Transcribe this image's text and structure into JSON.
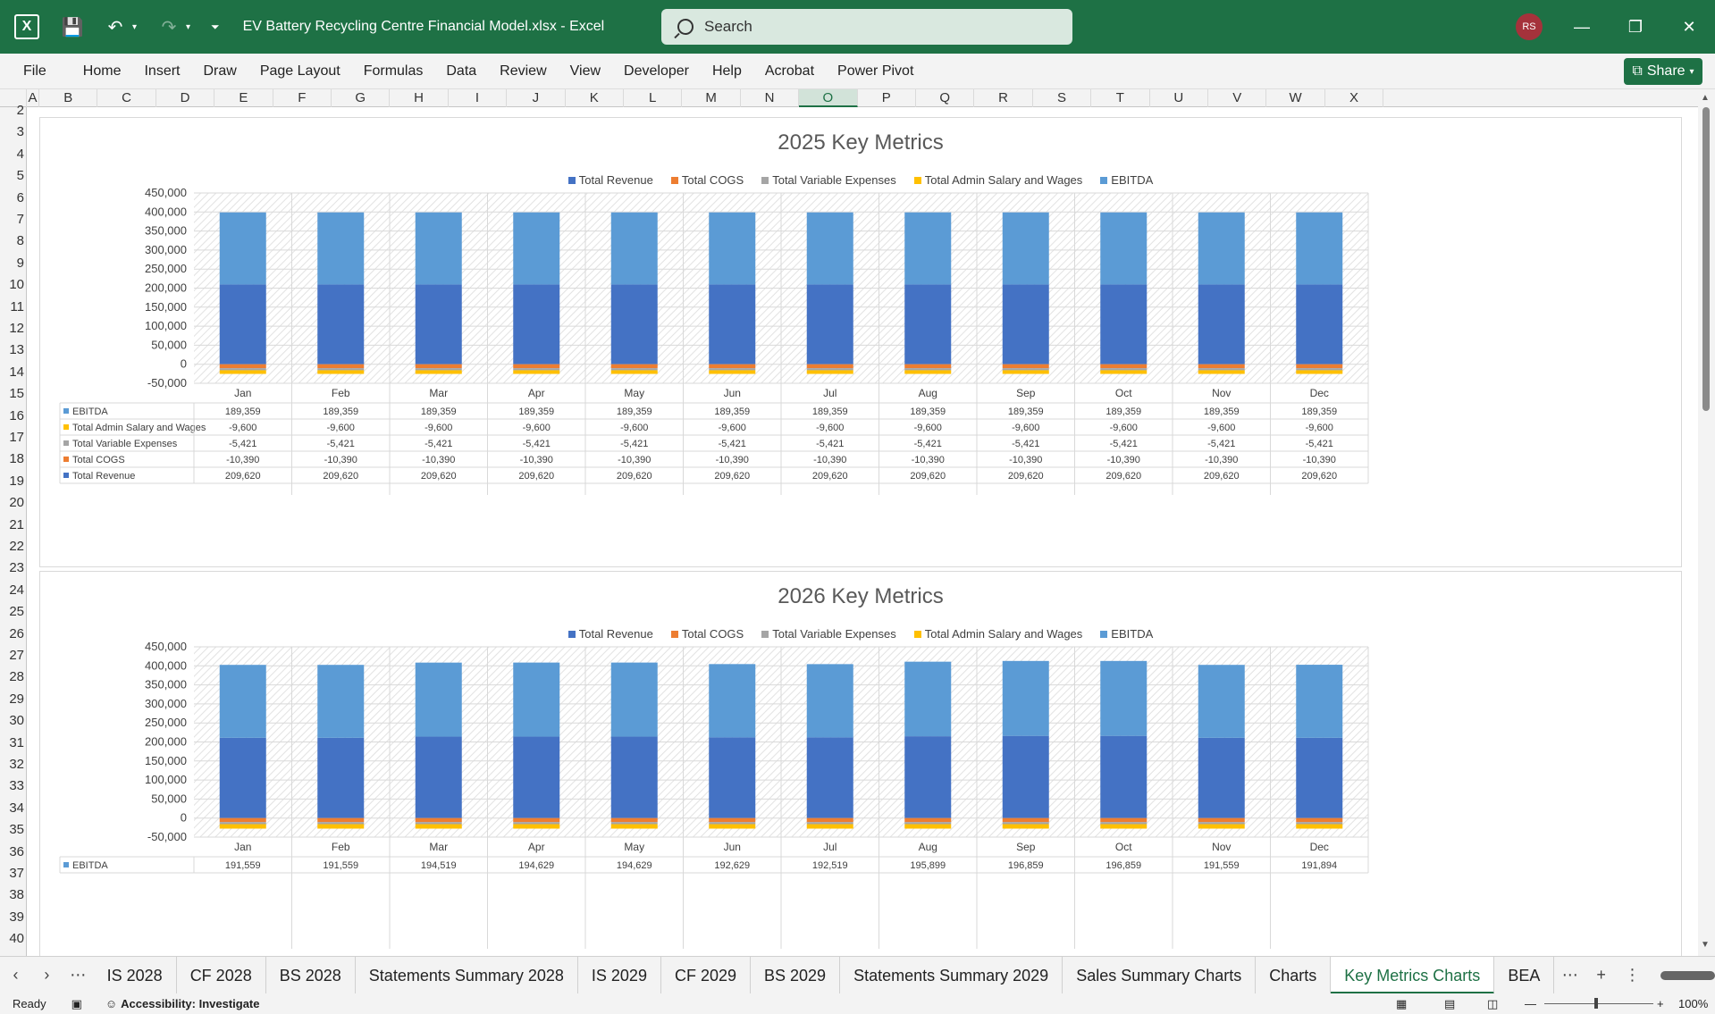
{
  "window": {
    "title": "EV Battery Recycling Centre Financial Model.xlsx  -  Excel",
    "search_placeholder": "Search",
    "user_initials": "RS"
  },
  "menu": [
    "File",
    "Home",
    "Insert",
    "Draw",
    "Page Layout",
    "Formulas",
    "Data",
    "Review",
    "View",
    "Developer",
    "Help",
    "Acrobat",
    "Power Pivot"
  ],
  "share_label": "Share",
  "columns": [
    "A",
    "B",
    "C",
    "D",
    "E",
    "F",
    "G",
    "H",
    "I",
    "J",
    "K",
    "L",
    "M",
    "N",
    "O",
    "P",
    "Q",
    "R",
    "S",
    "T",
    "U",
    "V",
    "W",
    "X"
  ],
  "selected_column": "O",
  "rows": [
    "2",
    "3",
    "4",
    "5",
    "6",
    "7",
    "8",
    "9",
    "10",
    "11",
    "12",
    "13",
    "14",
    "15",
    "16",
    "17",
    "18",
    "19",
    "20",
    "21",
    "22",
    "23",
    "24",
    "25",
    "26",
    "27",
    "28",
    "29",
    "30",
    "31",
    "32",
    "33",
    "34",
    "35",
    "36",
    "37",
    "38",
    "39",
    "40"
  ],
  "colors": {
    "revenue": "#4472c4",
    "cogs": "#ed7d31",
    "variable": "#a5a5a5",
    "admin": "#ffc000",
    "ebitda": "#5b9bd5",
    "excel_green": "#1e7145"
  },
  "chart_data": [
    {
      "type": "bar",
      "stacked": true,
      "title": "2025 Key Metrics",
      "categories": [
        "Jan",
        "Feb",
        "Mar",
        "Apr",
        "May",
        "Jun",
        "Jul",
        "Aug",
        "Sep",
        "Oct",
        "Nov",
        "Dec"
      ],
      "ylim": [
        -50000,
        450000
      ],
      "yticks": [
        "450,000",
        "400,000",
        "350,000",
        "300,000",
        "250,000",
        "200,000",
        "150,000",
        "100,000",
        "50,000",
        "0",
        "-50,000"
      ],
      "legend": [
        "Total Revenue",
        "Total COGS",
        "Total Variable Expenses",
        "Total Admin Salary and Wages",
        "EBITDA"
      ],
      "series": [
        {
          "name": "Total Revenue",
          "values": [
            209620,
            209620,
            209620,
            209620,
            209620,
            209620,
            209620,
            209620,
            209620,
            209620,
            209620,
            209620
          ]
        },
        {
          "name": "Total COGS",
          "values": [
            -10390,
            -10390,
            -10390,
            -10390,
            -10390,
            -10390,
            -10390,
            -10390,
            -10390,
            -10390,
            -10390,
            -10390
          ]
        },
        {
          "name": "Total Variable Expenses",
          "values": [
            -5421,
            -5421,
            -5421,
            -5421,
            -5421,
            -5421,
            -5421,
            -5421,
            -5421,
            -5421,
            -5421,
            -5421
          ]
        },
        {
          "name": "Total Admin Salary and Wages",
          "values": [
            -9600,
            -9600,
            -9600,
            -9600,
            -9600,
            -9600,
            -9600,
            -9600,
            -9600,
            -9600,
            -9600,
            -9600
          ]
        },
        {
          "name": "EBITDA",
          "values": [
            189359,
            189359,
            189359,
            189359,
            189359,
            189359,
            189359,
            189359,
            189359,
            189359,
            189359,
            189359
          ]
        }
      ],
      "table_rows": [
        {
          "name": "EBITDA",
          "values": [
            "189,359",
            "189,359",
            "189,359",
            "189,359",
            "189,359",
            "189,359",
            "189,359",
            "189,359",
            "189,359",
            "189,359",
            "189,359",
            "189,359"
          ]
        },
        {
          "name": "Total Admin Salary and Wages",
          "values": [
            "-9,600",
            "-9,600",
            "-9,600",
            "-9,600",
            "-9,600",
            "-9,600",
            "-9,600",
            "-9,600",
            "-9,600",
            "-9,600",
            "-9,600",
            "-9,600"
          ]
        },
        {
          "name": "Total Variable Expenses",
          "values": [
            "-5,421",
            "-5,421",
            "-5,421",
            "-5,421",
            "-5,421",
            "-5,421",
            "-5,421",
            "-5,421",
            "-5,421",
            "-5,421",
            "-5,421",
            "-5,421"
          ]
        },
        {
          "name": "Total COGS",
          "values": [
            "-10,390",
            "-10,390",
            "-10,390",
            "-10,390",
            "-10,390",
            "-10,390",
            "-10,390",
            "-10,390",
            "-10,390",
            "-10,390",
            "-10,390",
            "-10,390"
          ]
        },
        {
          "name": "Total Revenue",
          "values": [
            "209,620",
            "209,620",
            "209,620",
            "209,620",
            "209,620",
            "209,620",
            "209,620",
            "209,620",
            "209,620",
            "209,620",
            "209,620",
            "209,620"
          ]
        }
      ]
    },
    {
      "type": "bar",
      "stacked": true,
      "title": "2026 Key Metrics",
      "categories": [
        "Jan",
        "Feb",
        "Mar",
        "Apr",
        "May",
        "Jun",
        "Jul",
        "Aug",
        "Sep",
        "Oct",
        "Nov",
        "Dec"
      ],
      "ylim": [
        -50000,
        450000
      ],
      "yticks": [
        "450,000",
        "400,000",
        "350,000",
        "300,000",
        "250,000",
        "200,000",
        "150,000",
        "100,000",
        "50,000",
        "0",
        "-50,000"
      ],
      "legend": [
        "Total Revenue",
        "Total COGS",
        "Total Variable Expenses",
        "Total Admin Salary and Wages",
        "EBITDA"
      ],
      "series": [
        {
          "name": "Total Revenue",
          "values": [
            211000,
            211000,
            214000,
            214000,
            214000,
            212000,
            212000,
            215000,
            216000,
            216000,
            211000,
            211000
          ]
        },
        {
          "name": "Total COGS",
          "values": [
            -10500,
            -10500,
            -10500,
            -10500,
            -10500,
            -10500,
            -10500,
            -10500,
            -10500,
            -10500,
            -10500,
            -10500
          ]
        },
        {
          "name": "Total Variable Expenses",
          "values": [
            -5500,
            -5500,
            -5500,
            -5500,
            -5500,
            -5500,
            -5500,
            -5500,
            -5500,
            -5500,
            -5500,
            -5500
          ]
        },
        {
          "name": "Total Admin Salary and Wages",
          "values": [
            -11700,
            -11700,
            -11700,
            -11700,
            -11700,
            -11700,
            -11700,
            -11700,
            -11700,
            -11700,
            -11700,
            -11700
          ]
        },
        {
          "name": "EBITDA",
          "values": [
            191559,
            191559,
            194519,
            194629,
            194629,
            192629,
            192519,
            195899,
            196859,
            196859,
            191559,
            191894
          ]
        }
      ],
      "table_rows": [
        {
          "name": "EBITDA",
          "values": [
            "191,559",
            "191,559",
            "194,519",
            "194,629",
            "194,629",
            "192,629",
            "192,519",
            "195,899",
            "196,859",
            "196,859",
            "191,559",
            "191,894"
          ]
        }
      ]
    }
  ],
  "sheet_tabs": [
    "IS 2028",
    "CF 2028",
    "BS 2028",
    "Statements Summary 2028",
    "IS 2029",
    "CF 2029",
    "BS 2029",
    "Statements Summary 2029",
    "Sales Summary Charts",
    "Charts",
    "Key Metrics Charts",
    "BEA"
  ],
  "active_tab": "Key Metrics Charts",
  "status": {
    "ready": "Ready",
    "accessibility": "Accessibility: Investigate",
    "zoom": "100%"
  }
}
